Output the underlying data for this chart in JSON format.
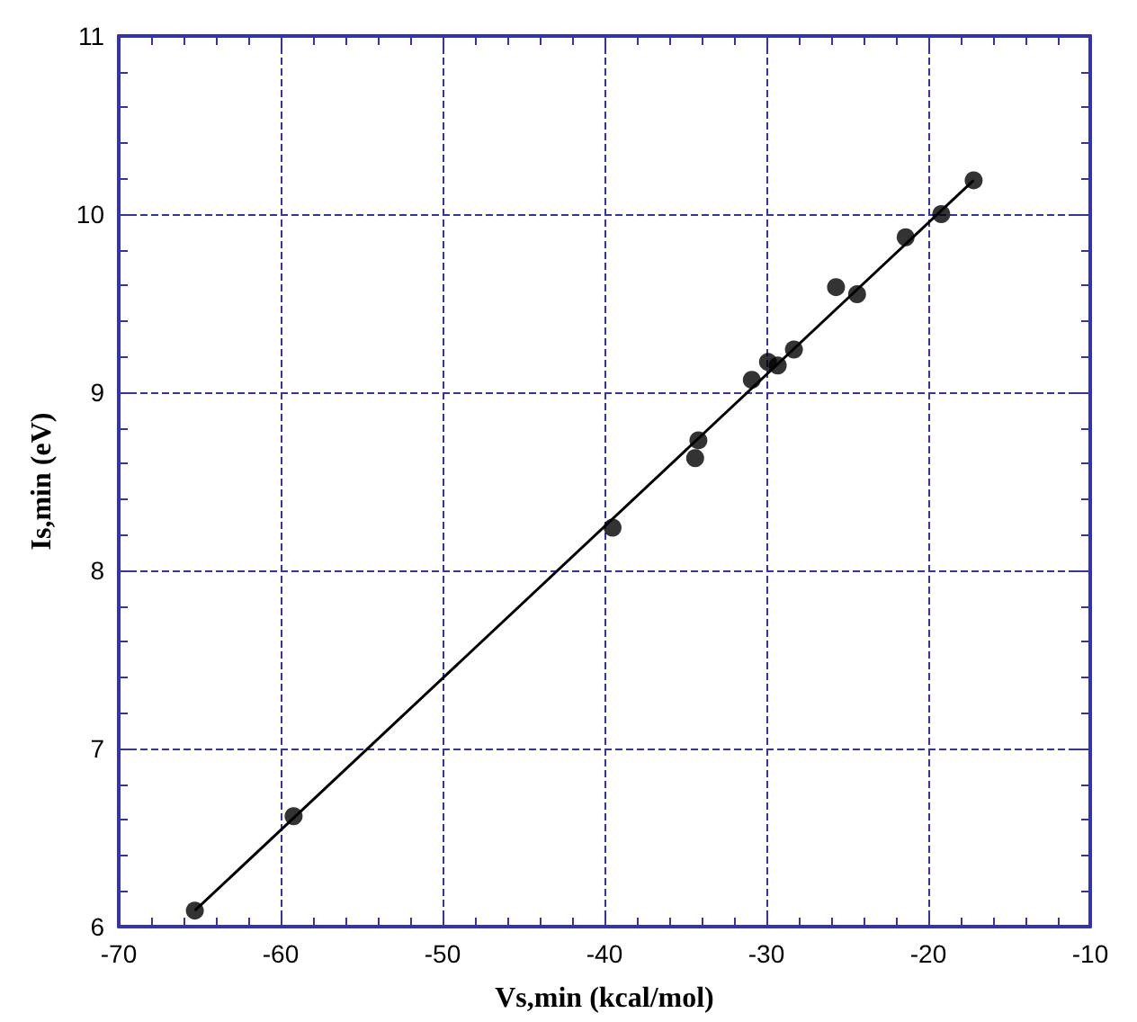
{
  "chart_data": {
    "type": "scatter",
    "xlabel": "Vs,min (kcal/mol)",
    "ylabel": "Is,min (eV)",
    "xlim": [
      -70,
      -10
    ],
    "xticks": [
      -70,
      -60,
      -50,
      -40,
      -30,
      -20,
      -10
    ],
    "ylim": [
      6,
      11
    ],
    "yticks": [
      6,
      7,
      8,
      9,
      10,
      11
    ],
    "grid": true,
    "marker": "circle",
    "series": [
      {
        "color": "#000000",
        "x": [
          -65.3,
          -59.2,
          -39.5,
          -34.4,
          -34.2,
          -30.9,
          -29.9,
          -29.3,
          -28.3,
          -25.7,
          -24.4,
          -21.4,
          -19.2,
          -17.2
        ],
        "values": [
          6.09,
          6.62,
          8.24,
          8.63,
          8.73,
          9.07,
          9.17,
          9.15,
          9.24,
          9.59,
          9.55,
          9.87,
          10.0,
          10.19
        ]
      },
      {
        "type": "line",
        "color": "#000000",
        "line_style": "solid",
        "marker": "none",
        "x": [
          -65.3,
          -17.2
        ],
        "values": [
          6.09,
          10.19
        ]
      }
    ]
  }
}
